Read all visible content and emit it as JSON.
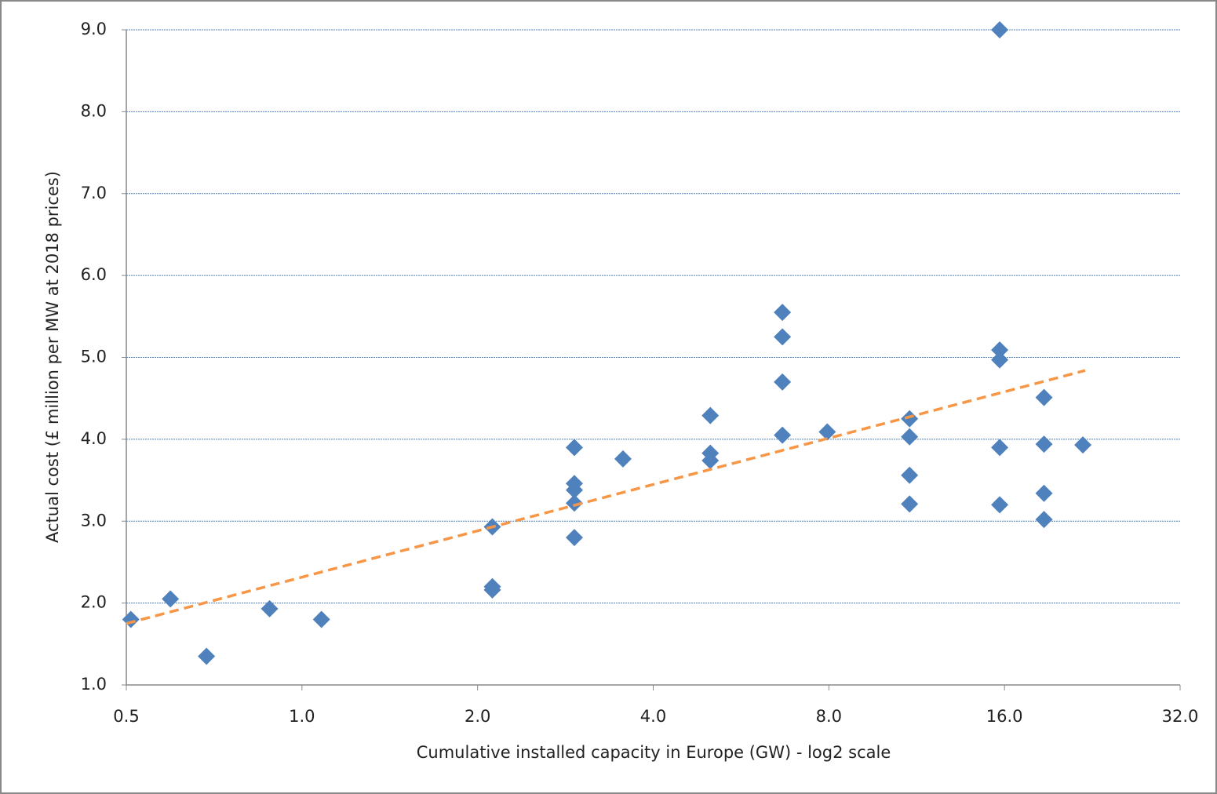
{
  "chart_data": {
    "type": "scatter",
    "x_label": "Cumulative installed capacity in Europe (GW) - log2 scale",
    "y_label": "Actual cost  (£ million per MW at 2018 prices)",
    "xscale": "log2",
    "grid": true,
    "xlim": [
      0.5,
      32
    ],
    "xticks": [
      0.5,
      {
        "value": 1,
        "label": "1.0"
      },
      {
        "value": 2,
        "label": "2.0"
      },
      {
        "value": 4,
        "label": "4.0"
      },
      {
        "value": 8,
        "label": "8.0"
      },
      {
        "value": 16,
        "label": "16.0"
      },
      {
        "value": 32,
        "label": "32.0"
      }
    ],
    "ylim": [
      1,
      9
    ],
    "yticks": [
      {
        "value": 1,
        "label": "1.0"
      },
      {
        "value": 2,
        "label": "2.0"
      },
      {
        "value": 3,
        "label": "3.0"
      },
      {
        "value": 4,
        "label": "4.0"
      },
      {
        "value": 5,
        "label": "5.0"
      },
      {
        "value": 6,
        "label": "6.0"
      },
      {
        "value": 7,
        "label": "7.0"
      },
      {
        "value": 8,
        "label": "8.0"
      },
      {
        "value": 9,
        "label": "9.0"
      }
    ],
    "series": [
      {
        "color": "#4f81bd",
        "x": [
          0.509,
          0.595,
          0.686,
          0.88,
          1.08,
          2.12,
          2.12,
          2.12,
          2.93,
          2.93,
          2.93,
          2.93,
          2.93,
          3.55,
          5.01,
          5.01,
          5.01,
          6.66,
          6.66,
          6.66,
          6.66,
          7.95,
          11.0,
          11.0,
          11.0,
          11.0,
          15.7,
          15.7,
          15.7,
          15.7,
          15.7,
          18.7,
          18.7,
          18.7,
          18.7,
          21.8
        ],
        "values": [
          1.8,
          2.05,
          1.35,
          1.93,
          1.8,
          2.2,
          2.16,
          2.93,
          2.8,
          3.22,
          3.38,
          3.46,
          3.9,
          3.76,
          4.29,
          3.83,
          3.74,
          5.55,
          5.25,
          4.7,
          4.05,
          4.09,
          4.25,
          4.03,
          3.56,
          3.21,
          9.0,
          5.09,
          4.97,
          3.9,
          3.2,
          4.51,
          3.94,
          3.34,
          3.02,
          3.93
        ]
      }
    ],
    "trendline": {
      "color": "#f79646",
      "x": [
        0.5,
        22
      ],
      "values": [
        1.75,
        4.84
      ]
    }
  }
}
